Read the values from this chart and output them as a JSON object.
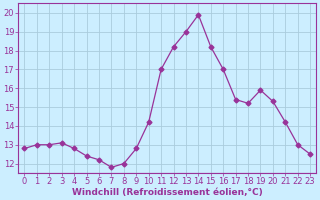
{
  "x": [
    0,
    1,
    2,
    3,
    4,
    5,
    6,
    7,
    8,
    9,
    10,
    11,
    12,
    13,
    14,
    15,
    16,
    17,
    18,
    19,
    20,
    21,
    22,
    23
  ],
  "y": [
    12.8,
    13.0,
    13.0,
    13.1,
    12.8,
    12.4,
    12.2,
    11.8,
    12.0,
    12.8,
    14.2,
    17.0,
    18.2,
    19.0,
    19.9,
    18.2,
    17.0,
    15.4,
    15.2,
    15.9,
    15.3,
    14.2,
    13.0,
    12.5
  ],
  "line_color": "#993399",
  "marker": "D",
  "marker_size": 2.5,
  "bg_color": "#cceeff",
  "grid_color": "#aaccdd",
  "xlabel": "Windchill (Refroidissement éolien,°C)",
  "ylim": [
    11.5,
    20.5
  ],
  "xlim": [
    -0.5,
    23.5
  ],
  "yticks": [
    12,
    13,
    14,
    15,
    16,
    17,
    18,
    19,
    20
  ],
  "xticks": [
    0,
    1,
    2,
    3,
    4,
    5,
    6,
    7,
    8,
    9,
    10,
    11,
    12,
    13,
    14,
    15,
    16,
    17,
    18,
    19,
    20,
    21,
    22,
    23
  ],
  "tick_color": "#993399",
  "label_color": "#993399",
  "tick_fontsize": 6,
  "xlabel_fontsize": 6.5
}
